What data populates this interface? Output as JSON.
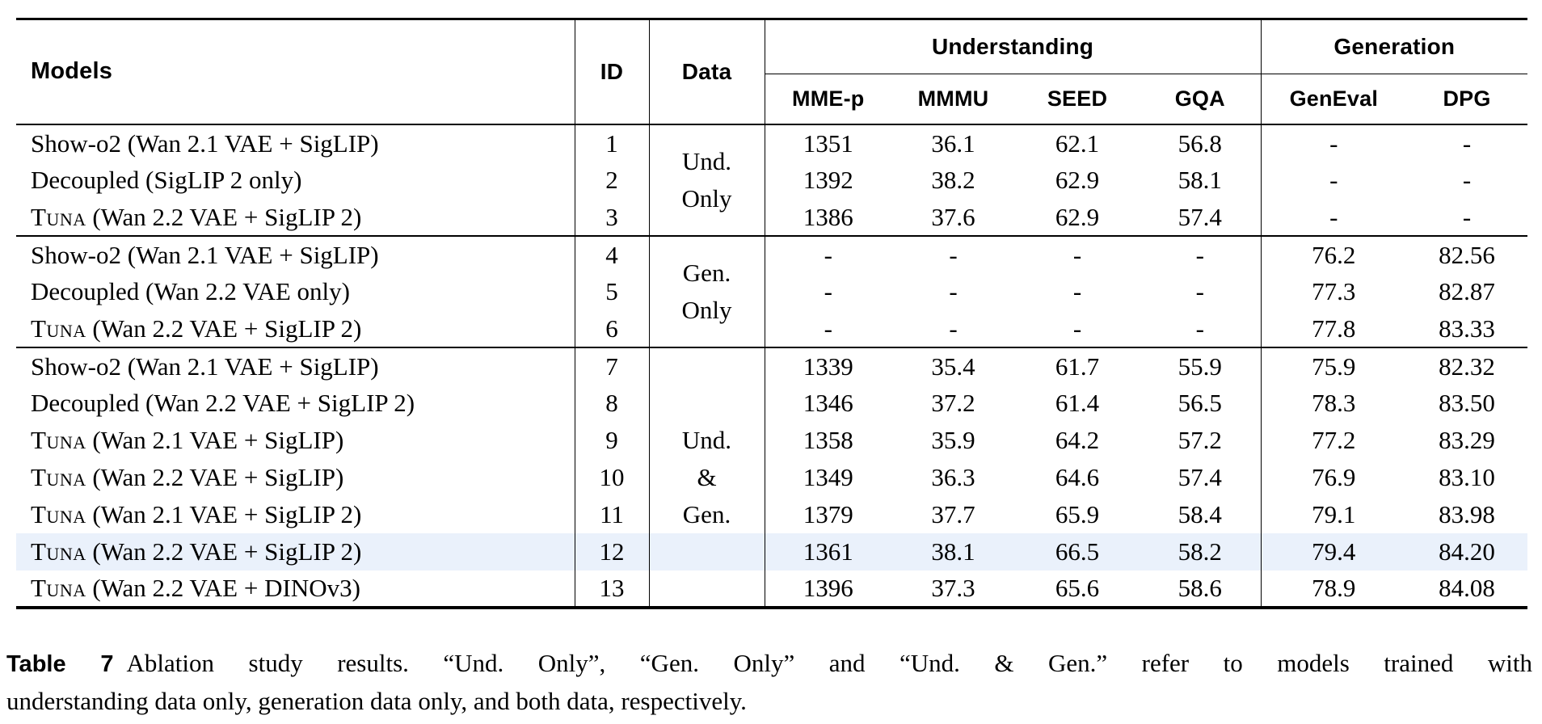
{
  "table": {
    "header": {
      "models": "Models",
      "id": "ID",
      "data": "Data",
      "understanding": "Understanding",
      "generation": "Generation",
      "metrics": [
        "MME-p",
        "MMMU",
        "SEED",
        "GQA",
        "GenEval",
        "DPG"
      ]
    },
    "groups": [
      {
        "rowspan": true,
        "data_lines": [
          "Und.",
          "Only"
        ],
        "rows": [
          {
            "id": "1",
            "model_sc": "",
            "model": "Show-o2 (Wan 2.1 VAE + SigLIP)",
            "data_label": "",
            "highlight": false,
            "values": [
              "1351",
              "36.1",
              "62.1",
              "56.8",
              "-",
              "-"
            ]
          },
          {
            "id": "2",
            "model_sc": "",
            "model": "Decoupled (SigLIP 2 only)",
            "data_label": "",
            "highlight": false,
            "values": [
              "1392",
              "38.2",
              "62.9",
              "58.1",
              "-",
              "-"
            ]
          },
          {
            "id": "3",
            "model_sc": "Tuna",
            "model": " (Wan 2.2 VAE + SigLIP 2)",
            "data_label": "",
            "highlight": false,
            "values": [
              "1386",
              "37.6",
              "62.9",
              "57.4",
              "-",
              "-"
            ]
          }
        ]
      },
      {
        "rowspan": true,
        "data_lines": [
          "Gen.",
          "Only"
        ],
        "rows": [
          {
            "id": "4",
            "model_sc": "",
            "model": "Show-o2 (Wan 2.1 VAE + SigLIP)",
            "data_label": "",
            "highlight": false,
            "values": [
              "-",
              "-",
              "-",
              "-",
              "76.2",
              "82.56"
            ]
          },
          {
            "id": "5",
            "model_sc": "",
            "model": "Decoupled (Wan 2.2 VAE only)",
            "data_label": "",
            "highlight": false,
            "values": [
              "-",
              "-",
              "-",
              "-",
              "77.3",
              "82.87"
            ]
          },
          {
            "id": "6",
            "model_sc": "Tuna",
            "model": " (Wan 2.2 VAE + SigLIP 2)",
            "data_label": "",
            "highlight": false,
            "values": [
              "-",
              "-",
              "-",
              "-",
              "77.8",
              "83.33"
            ]
          }
        ]
      },
      {
        "rowspan": false,
        "data_lines": [],
        "rows": [
          {
            "id": "7",
            "model_sc": "",
            "model": "Show-o2 (Wan 2.1 VAE + SigLIP)",
            "data_label": "",
            "highlight": false,
            "values": [
              "1339",
              "35.4",
              "61.7",
              "55.9",
              "75.9",
              "82.32"
            ]
          },
          {
            "id": "8",
            "model_sc": "",
            "model": "Decoupled (Wan 2.2 VAE + SigLIP 2)",
            "data_label": "",
            "highlight": false,
            "values": [
              "1346",
              "37.2",
              "61.4",
              "56.5",
              "78.3",
              "83.50"
            ]
          },
          {
            "id": "9",
            "model_sc": "Tuna",
            "model": " (Wan 2.1 VAE + SigLIP)",
            "data_label": "Und.",
            "highlight": false,
            "values": [
              "1358",
              "35.9",
              "64.2",
              "57.2",
              "77.2",
              "83.29"
            ]
          },
          {
            "id": "10",
            "model_sc": "Tuna",
            "model": " (Wan 2.2 VAE + SigLIP)",
            "data_label": "&",
            "highlight": false,
            "values": [
              "1349",
              "36.3",
              "64.6",
              "57.4",
              "76.9",
              "83.10"
            ]
          },
          {
            "id": "11",
            "model_sc": "Tuna",
            "model": " (Wan 2.1 VAE + SigLIP 2)",
            "data_label": "Gen.",
            "highlight": false,
            "values": [
              "1379",
              "37.7",
              "65.9",
              "58.4",
              "79.1",
              "83.98"
            ]
          },
          {
            "id": "12",
            "model_sc": "Tuna",
            "model": " (Wan 2.2 VAE + SigLIP 2)",
            "data_label": "",
            "highlight": true,
            "values": [
              "1361",
              "38.1",
              "66.5",
              "58.2",
              "79.4",
              "84.20"
            ]
          },
          {
            "id": "13",
            "model_sc": "Tuna",
            "model": " (Wan 2.2 VAE + DINOv3)",
            "data_label": "",
            "highlight": false,
            "values": [
              "1396",
              "37.3",
              "65.6",
              "58.6",
              "78.9",
              "84.08"
            ]
          }
        ]
      }
    ]
  },
  "caption": {
    "label": "Table 7",
    "line1": "Ablation study results. “Und. Only”, “Gen. Only” and “Und. & Gen.” refer to models trained with",
    "line2": "understanding data only, generation data only, and both data, respectively."
  },
  "colors": {
    "highlight_row": "#eaf1fb",
    "rule": "#000000"
  }
}
